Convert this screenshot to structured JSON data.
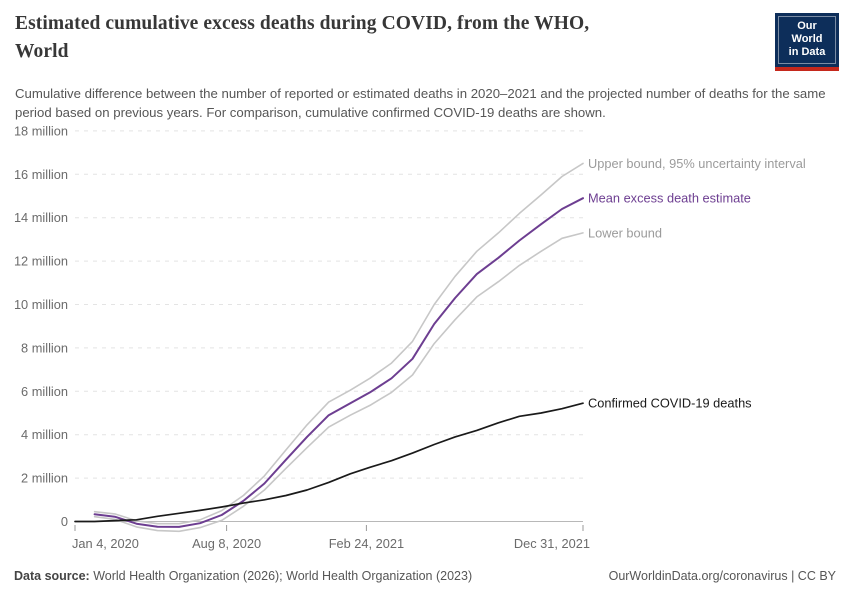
{
  "header": {
    "title_lines": [
      "Estimated cumulative excess deaths during COVID, from the WHO,",
      "World"
    ],
    "subtitle": "Cumulative difference between the number of reported or estimated deaths in 2020–2021 and the projected number of deaths for the same period based on previous years. For comparison, cumulative confirmed COVID-19 deaths are shown.",
    "logo": {
      "line1": "Our World",
      "line2": "in Data"
    }
  },
  "footer": {
    "source_label": "Data source:",
    "source_value": " World Health Organization (2026); World Health Organization (2023)",
    "rights": "OurWorldinData.org/coronavirus | CC BY"
  },
  "colors": {
    "purple": "#6d3e91",
    "bound_line": "#c7c7c7",
    "bound_label": "#9b9b9b",
    "black_line": "#1a1a1a",
    "grid": "#e4e4e4",
    "zero_line": "#b8b8b8",
    "axis_text": "#6b6b6b",
    "logo_navy": "#0d2e5a",
    "logo_red": "#c5281c"
  },
  "chart_data": {
    "type": "line",
    "title": "Estimated cumulative excess deaths during COVID, from the WHO, World",
    "unit": "million deaths (cumulative)",
    "grid": "dashed-horizontal",
    "legend_position": "line-end-labels-right",
    "x_axis": {
      "start": "2020-01-04",
      "end": "2021-12-31",
      "ticks": [
        {
          "date": "2020-01-04",
          "label": "Jan 4, 2020",
          "anchor": "start"
        },
        {
          "date": "2020-08-08",
          "label": "Aug 8, 2020",
          "anchor": "middle"
        },
        {
          "date": "2021-02-24",
          "label": "Feb 24, 2021",
          "anchor": "middle"
        },
        {
          "date": "2021-12-31",
          "label": "Dec 31, 2021",
          "anchor": "end"
        }
      ]
    },
    "y_axis": {
      "min": -0.6,
      "max": 18,
      "ticks": [
        {
          "value": 0,
          "label": "0"
        },
        {
          "value": 2,
          "label": "2 million"
        },
        {
          "value": 4,
          "label": "4 million"
        },
        {
          "value": 6,
          "label": "6 million"
        },
        {
          "value": 8,
          "label": "8 million"
        },
        {
          "value": 10,
          "label": "10 million"
        },
        {
          "value": 12,
          "label": "12 million"
        },
        {
          "value": 14,
          "label": "14 million"
        },
        {
          "value": 16,
          "label": "16 million"
        },
        {
          "value": 18,
          "label": "18 million"
        }
      ]
    },
    "series": [
      {
        "name": "Upper bound, 95% uncertainty interval",
        "color": "#c7c7c7",
        "label_color": "#9b9b9b",
        "width": 1.6,
        "points": [
          [
            "2020-02-01",
            0.45
          ],
          [
            "2020-03-01",
            0.35
          ],
          [
            "2020-04-01",
            0.03
          ],
          [
            "2020-05-01",
            -0.1
          ],
          [
            "2020-06-01",
            -0.1
          ],
          [
            "2020-07-01",
            0.08
          ],
          [
            "2020-08-01",
            0.5
          ],
          [
            "2020-09-01",
            1.2
          ],
          [
            "2020-10-01",
            2.1
          ],
          [
            "2020-11-01",
            3.3
          ],
          [
            "2020-12-01",
            4.45
          ],
          [
            "2021-01-01",
            5.5
          ],
          [
            "2021-02-01",
            6.05
          ],
          [
            "2021-03-01",
            6.6
          ],
          [
            "2021-04-01",
            7.3
          ],
          [
            "2021-05-01",
            8.3
          ],
          [
            "2021-06-01",
            10.0
          ],
          [
            "2021-07-01",
            11.3
          ],
          [
            "2021-08-01",
            12.45
          ],
          [
            "2021-09-01",
            13.3
          ],
          [
            "2021-10-01",
            14.2
          ],
          [
            "2021-11-01",
            15.05
          ],
          [
            "2021-12-01",
            15.9
          ],
          [
            "2021-12-31",
            16.5
          ]
        ]
      },
      {
        "name": "Lower bound",
        "color": "#c7c7c7",
        "label_color": "#9b9b9b",
        "width": 1.6,
        "points": [
          [
            "2020-02-01",
            0.22
          ],
          [
            "2020-03-01",
            0.1
          ],
          [
            "2020-04-01",
            -0.25
          ],
          [
            "2020-05-01",
            -0.42
          ],
          [
            "2020-06-01",
            -0.45
          ],
          [
            "2020-07-01",
            -0.28
          ],
          [
            "2020-08-01",
            0.05
          ],
          [
            "2020-09-01",
            0.7
          ],
          [
            "2020-10-01",
            1.45
          ],
          [
            "2020-11-01",
            2.45
          ],
          [
            "2020-12-01",
            3.4
          ],
          [
            "2021-01-01",
            4.35
          ],
          [
            "2021-02-01",
            4.9
          ],
          [
            "2021-03-01",
            5.35
          ],
          [
            "2021-04-01",
            5.95
          ],
          [
            "2021-05-01",
            6.75
          ],
          [
            "2021-06-01",
            8.2
          ],
          [
            "2021-07-01",
            9.3
          ],
          [
            "2021-08-01",
            10.35
          ],
          [
            "2021-09-01",
            11.05
          ],
          [
            "2021-10-01",
            11.8
          ],
          [
            "2021-11-01",
            12.45
          ],
          [
            "2021-12-01",
            13.05
          ],
          [
            "2021-12-31",
            13.3
          ]
        ]
      },
      {
        "name": "Mean excess death estimate",
        "color": "#6d3e91",
        "label_color": "#6d3e91",
        "width": 2,
        "points": [
          [
            "2020-02-01",
            0.33
          ],
          [
            "2020-03-01",
            0.22
          ],
          [
            "2020-04-01",
            -0.1
          ],
          [
            "2020-05-01",
            -0.24
          ],
          [
            "2020-06-01",
            -0.25
          ],
          [
            "2020-07-01",
            -0.08
          ],
          [
            "2020-08-01",
            0.3
          ],
          [
            "2020-09-01",
            0.95
          ],
          [
            "2020-10-01",
            1.75
          ],
          [
            "2020-11-01",
            2.85
          ],
          [
            "2020-12-01",
            3.9
          ],
          [
            "2021-01-01",
            4.9
          ],
          [
            "2021-02-01",
            5.45
          ],
          [
            "2021-03-01",
            5.95
          ],
          [
            "2021-04-01",
            6.6
          ],
          [
            "2021-05-01",
            7.5
          ],
          [
            "2021-06-01",
            9.1
          ],
          [
            "2021-07-01",
            10.3
          ],
          [
            "2021-08-01",
            11.4
          ],
          [
            "2021-09-01",
            12.15
          ],
          [
            "2021-10-01",
            12.95
          ],
          [
            "2021-11-01",
            13.7
          ],
          [
            "2021-12-01",
            14.4
          ],
          [
            "2021-12-31",
            14.9
          ]
        ]
      },
      {
        "name": "Confirmed COVID-19 deaths",
        "color": "#1a1a1a",
        "label_color": "#1a1a1a",
        "width": 1.7,
        "points": [
          [
            "2020-01-04",
            0.0
          ],
          [
            "2020-02-01",
            0.0
          ],
          [
            "2020-03-01",
            0.04
          ],
          [
            "2020-04-01",
            0.08
          ],
          [
            "2020-05-01",
            0.24
          ],
          [
            "2020-06-01",
            0.38
          ],
          [
            "2020-07-01",
            0.51
          ],
          [
            "2020-08-01",
            0.67
          ],
          [
            "2020-09-01",
            0.85
          ],
          [
            "2020-10-01",
            1.0
          ],
          [
            "2020-11-01",
            1.2
          ],
          [
            "2020-12-01",
            1.45
          ],
          [
            "2021-01-01",
            1.8
          ],
          [
            "2021-02-01",
            2.2
          ],
          [
            "2021-03-01",
            2.5
          ],
          [
            "2021-04-01",
            2.8
          ],
          [
            "2021-05-01",
            3.15
          ],
          [
            "2021-06-01",
            3.55
          ],
          [
            "2021-07-01",
            3.9
          ],
          [
            "2021-08-01",
            4.2
          ],
          [
            "2021-09-01",
            4.55
          ],
          [
            "2021-10-01",
            4.85
          ],
          [
            "2021-11-01",
            5.0
          ],
          [
            "2021-12-01",
            5.2
          ],
          [
            "2021-12-31",
            5.45
          ]
        ]
      }
    ]
  }
}
